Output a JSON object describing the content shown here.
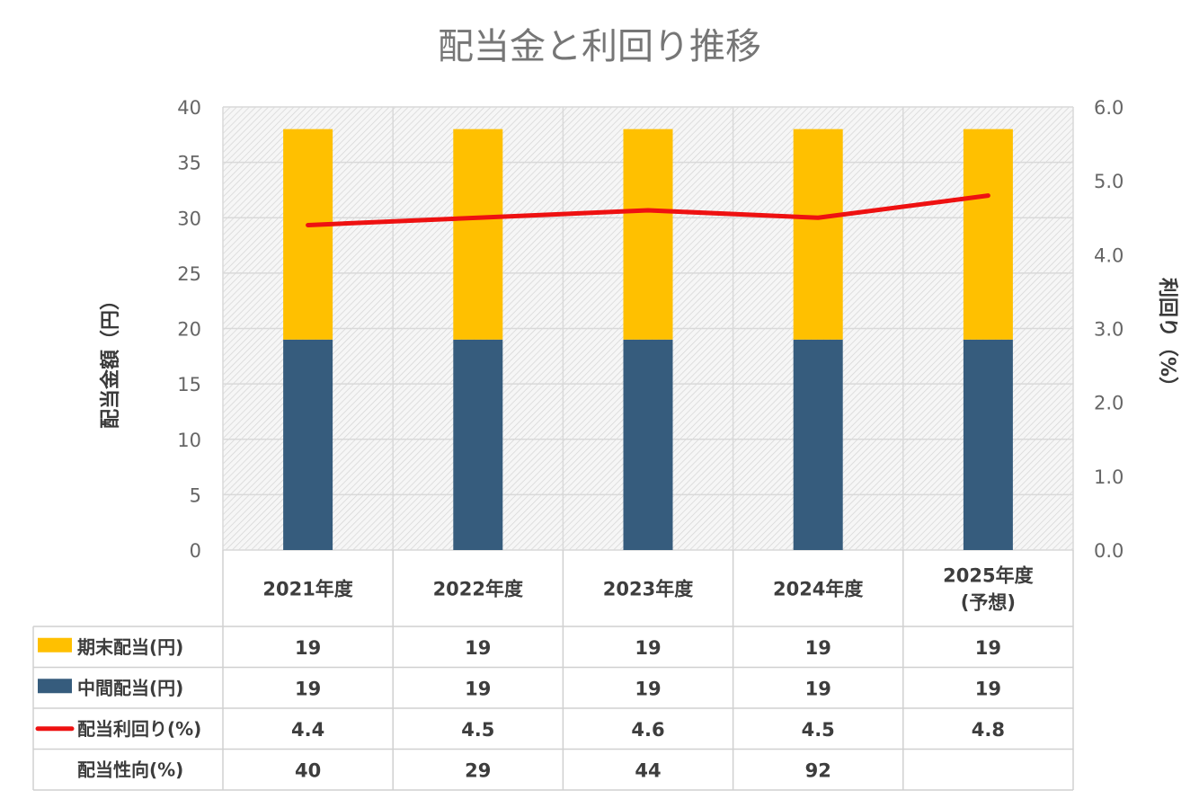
{
  "chart_data": {
    "type": "bar",
    "stacked": true,
    "title": "配当金と利回り推移",
    "categories": [
      "2021年度",
      "2022年度",
      "2023年度",
      "2024年度",
      "2025年度(予想)"
    ],
    "category_lines": [
      [
        "2021年度"
      ],
      [
        "2022年度"
      ],
      [
        "2023年度"
      ],
      [
        "2024年度"
      ],
      [
        "2025年度",
        "(予想)"
      ]
    ],
    "series": [
      {
        "name": "中間配当(円)",
        "type": "bar",
        "axis": "left",
        "color": "#365C7D",
        "values": [
          19,
          19,
          19,
          19,
          19
        ]
      },
      {
        "name": "期末配当(円)",
        "type": "bar",
        "axis": "left",
        "color": "#FFC000",
        "values": [
          19,
          19,
          19,
          19,
          19
        ]
      },
      {
        "name": "配当利回り(%)",
        "type": "line",
        "axis": "right",
        "color": "#EE1111",
        "values": [
          4.4,
          4.5,
          4.6,
          4.5,
          4.8
        ]
      }
    ],
    "ylabel": "配当金額（円）",
    "ylabel_right": "利回り（%）",
    "ylim": [
      0,
      40
    ],
    "ylim_right": [
      0,
      6
    ],
    "yticks": [
      "0",
      "5",
      "10",
      "15",
      "20",
      "25",
      "30",
      "35",
      "40"
    ],
    "yticks_right": [
      "0.0",
      "1.0",
      "2.0",
      "3.0",
      "4.0",
      "5.0",
      "6.0"
    ],
    "grid": true,
    "plot_background": "hatched light gray",
    "data_table": {
      "rows": [
        {
          "label": "期末配当(円)",
          "legend": "box",
          "color": "#FFC000",
          "values": [
            "19",
            "19",
            "19",
            "19",
            "19"
          ]
        },
        {
          "label": "中間配当(円)",
          "legend": "box",
          "color": "#365C7D",
          "values": [
            "19",
            "19",
            "19",
            "19",
            "19"
          ]
        },
        {
          "label": "配当利回り(%)",
          "legend": "line",
          "color": "#EE1111",
          "values": [
            "4.4",
            "4.5",
            "4.6",
            "4.5",
            "4.8"
          ]
        },
        {
          "label": "配当性向(%)",
          "legend": "none",
          "color": "",
          "values": [
            "40",
            "29",
            "44",
            "92",
            ""
          ]
        }
      ]
    }
  }
}
